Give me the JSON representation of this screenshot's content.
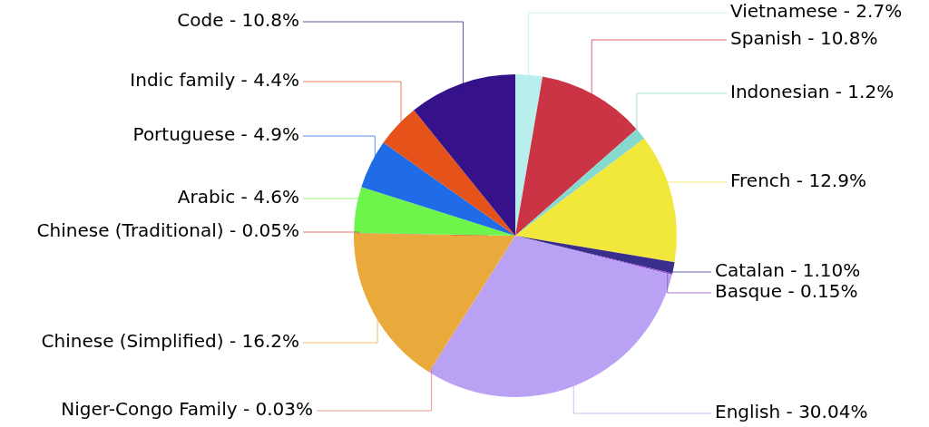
{
  "chart_data": {
    "type": "pie",
    "categories": [
      "Vietnamese",
      "Spanish",
      "Indonesian",
      "French",
      "Catalan",
      "Basque",
      "English",
      "Niger-Congo Family",
      "Chinese (Simplified)",
      "Chinese (Traditional)",
      "Arabic",
      "Portuguese",
      "Indic family",
      "Code"
    ],
    "values": [
      2.7,
      10.8,
      1.2,
      12.9,
      1.1,
      0.15,
      30.04,
      0.03,
      16.2,
      0.05,
      4.6,
      4.9,
      4.4,
      10.8
    ],
    "value_labels": [
      "Vietnamese - 2.7%",
      "Spanish - 10.8%",
      "Indonesian - 1.2%",
      "French - 12.9%",
      "Catalan - 1.10%",
      "Basque - 0.15%",
      "English - 30.04%",
      "Niger-Congo Family - 0.03%",
      "Chinese (Simplified) - 16.2%",
      "Chinese (Traditional) - 0.05%",
      "Arabic - 4.6%",
      "Portuguese - 4.9%",
      "Indic family - 4.4%",
      "Code - 10.8%"
    ],
    "colors": [
      "#b9eeee",
      "#cb3444",
      "#86d9cf",
      "#f2e83b",
      "#3a2e8c",
      "#8b45c9",
      "#b9a2f4",
      "#e0766a",
      "#eaa93b",
      "#d94a4a",
      "#6ef54b",
      "#1f6be8",
      "#e5531b",
      "#35128a"
    ],
    "data_labels": true
  }
}
